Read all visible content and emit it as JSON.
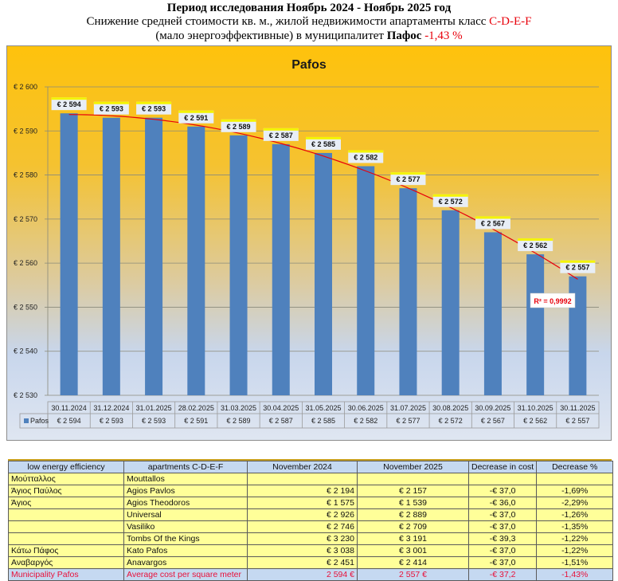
{
  "header": {
    "line1": "Период исследования Ноябрь 2024 - Ноябрь 2025 год",
    "line2_prefix": "Снижение средней стоимости кв. м., жилой недвижимости апартаменты класс ",
    "line2_class": "C-D-E-F",
    "line3_prefix": "(мало энергоэффективные) в муниципалитет ",
    "line3_city": "Пафос",
    "line3_change": " -1,43 %"
  },
  "colors": {
    "bar": "#4f81bd",
    "trendline": "#e8000b",
    "header_red": "#e8000b",
    "table_header": "#c5d9f1",
    "table_row": "#ffff99",
    "total_text": "#e8103a"
  },
  "chart_data": {
    "type": "bar",
    "title": "Pafos",
    "categories": [
      "30.11.2024",
      "31.12.2024",
      "31.01.2025",
      "28.02.2025",
      "31.03.2025",
      "30.04.2025",
      "31.05.2025",
      "30.06.2025",
      "31.07.2025",
      "30.08.2025",
      "30.09.2025",
      "31.10.2025",
      "30.11.2025"
    ],
    "series": [
      {
        "name": "Pafos",
        "values": [
          2594,
          2593,
          2593,
          2591,
          2589,
          2587,
          2585,
          2582,
          2577,
          2572,
          2567,
          2562,
          2557
        ]
      }
    ],
    "data_labels": [
      "€ 2 594",
      "€ 2 593",
      "€ 2 593",
      "€ 2 591",
      "€ 2 589",
      "€ 2 587",
      "€ 2 585",
      "€ 2 582",
      "€ 2 577",
      "€ 2 572",
      "€ 2 567",
      "€ 2 562",
      "€ 2 557"
    ],
    "ylim": [
      2530,
      2600
    ],
    "yticks": [
      2530,
      2540,
      2550,
      2560,
      2570,
      2580,
      2590,
      2600
    ],
    "ytick_labels": [
      "€ 2 530",
      "€ 2 540",
      "€ 2 550",
      "€ 2 560",
      "€ 2 570",
      "€ 2 580",
      "€ 2 590",
      "€ 2 600"
    ],
    "xlabel": "",
    "ylabel": "",
    "grid": true,
    "trendline": {
      "type": "polynomial",
      "r2_label": "R² = 0,9992"
    },
    "legend": "data-table-bottom",
    "legend_label": "Pafos"
  },
  "table": {
    "headers": [
      "low energy efficiency",
      "apartments C-D-E-F",
      "November 2024",
      "November 2025",
      "Decrease in cost",
      "Decrease %"
    ],
    "rows": [
      [
        "Μούτταλλος",
        "Mouttallos",
        "",
        "",
        "",
        ""
      ],
      [
        "Άγιος Παύλος",
        "Agios Pavlos",
        "€ 2 194",
        "€ 2 157",
        "-€ 37,0",
        "-1,69%"
      ],
      [
        "Άγιος",
        "Agios Theodoros",
        "€ 1 575",
        "€ 1 539",
        "-€ 36,0",
        "-2,29%"
      ],
      [
        "",
        "Universal",
        "€ 2 926",
        "€ 2 889",
        "-€ 37,0",
        "-1,26%"
      ],
      [
        "",
        "Vasiliko",
        "€ 2 746",
        "€ 2 709",
        "-€ 37,0",
        "-1,35%"
      ],
      [
        "",
        "Tombs Of the Kings",
        "€ 3 230",
        "€ 3 191",
        "-€ 39,3",
        "-1,22%"
      ],
      [
        "Κάτω Πάφος",
        "Kato Pafos",
        "€ 3 038",
        "€ 3 001",
        "-€ 37,0",
        "-1,22%"
      ],
      [
        "Αναβαργός",
        "Anavargos",
        "€ 2 451",
        "€ 2 414",
        "-€ 37,0",
        "-1,51%"
      ]
    ],
    "total": [
      "Municipality Pafos",
      "Average cost per square meter",
      "2 594 €",
      "2 557 €",
      "-€ 37,2",
      "-1,43%"
    ]
  }
}
